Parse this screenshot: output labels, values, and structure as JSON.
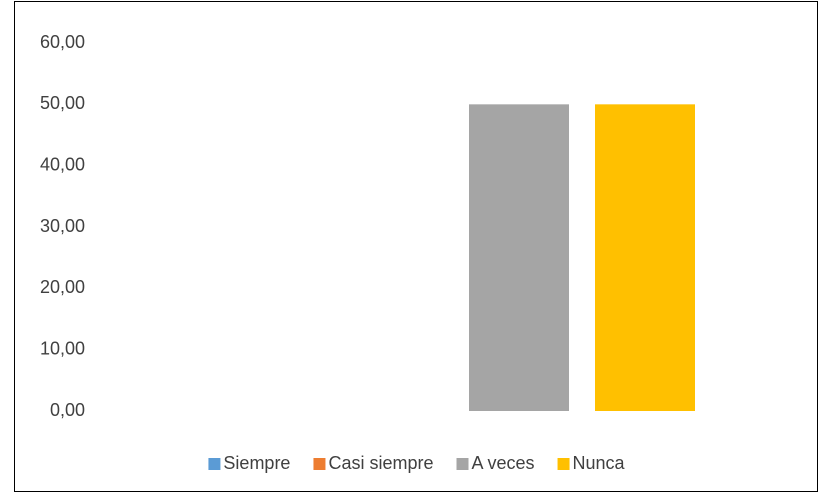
{
  "chart_data": {
    "type": "bar",
    "categories": [
      null
    ],
    "series": [
      {
        "name": "Siempre",
        "color": "#5b9bd5",
        "values": [
          0
        ]
      },
      {
        "name": "Casi siempre",
        "color": "#ed7d31",
        "values": [
          0
        ]
      },
      {
        "name": "A veces",
        "color": "#a5a5a5",
        "values": [
          50
        ]
      },
      {
        "name": "Nunca",
        "color": "#ffc000",
        "values": [
          50
        ]
      }
    ],
    "ylim": [
      0,
      60
    ],
    "yticks": [
      {
        "value": 0,
        "label": "0,00"
      },
      {
        "value": 10,
        "label": "10,00"
      },
      {
        "value": 20,
        "label": "20,00"
      },
      {
        "value": 30,
        "label": "30,00"
      },
      {
        "value": 40,
        "label": "40,00"
      },
      {
        "value": 50,
        "label": "50,00"
      },
      {
        "value": 60,
        "label": "60,00"
      }
    ],
    "grid": false,
    "legend": "bottom"
  }
}
